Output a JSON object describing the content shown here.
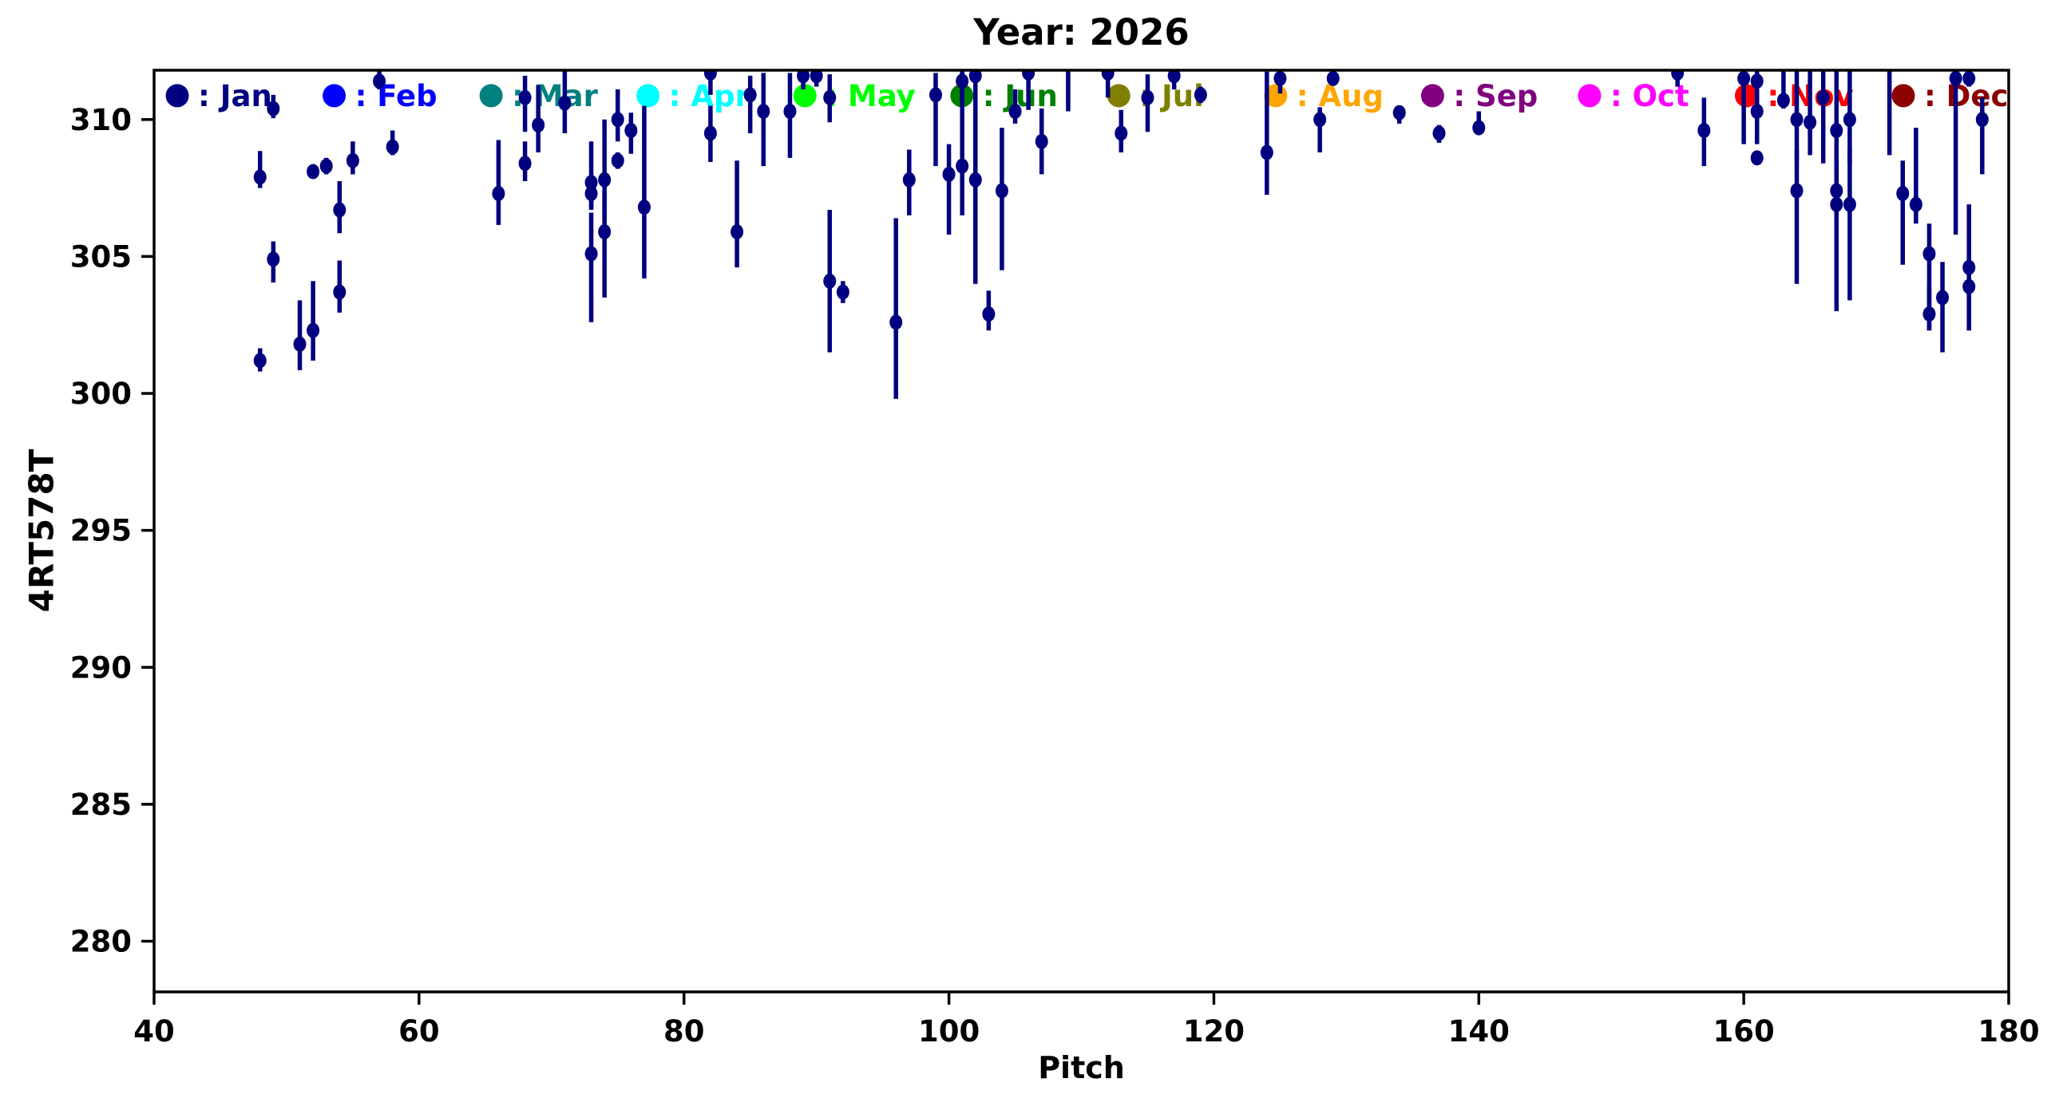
{
  "title": "Year: 2026",
  "axes": {
    "xlabel": "Pitch",
    "ylabel": "4RT578T",
    "xlim": [
      40,
      180
    ],
    "ylim": [
      278.15,
      311.8
    ],
    "x_ticks": [
      40,
      60,
      80,
      100,
      120,
      140,
      160,
      180
    ],
    "y_ticks": [
      280,
      285,
      290,
      295,
      300,
      305,
      310
    ],
    "grid": false,
    "frame_color": "#000000"
  },
  "legend": {
    "position": "inside-top-row",
    "start_pitch": 41.75,
    "step_pitch": 11.845,
    "value_y": 310.87,
    "label_prefix": ": ",
    "items": [
      {
        "label": "Jan",
        "color": "#000080"
      },
      {
        "label": "Feb",
        "color": "#0000FF"
      },
      {
        "label": "Mar",
        "color": "#008080"
      },
      {
        "label": "Apr",
        "color": "#00FFFF"
      },
      {
        "label": "May",
        "color": "#00FF00"
      },
      {
        "label": "Jun",
        "color": "#008000"
      },
      {
        "label": "Jul",
        "color": "#808000"
      },
      {
        "label": "Aug",
        "color": "#FFA500"
      },
      {
        "label": "Sep",
        "color": "#800080"
      },
      {
        "label": "Oct",
        "color": "#FF00FF"
      },
      {
        "label": "Nov",
        "color": "#FF0000"
      },
      {
        "label": "Dec",
        "color": "#8B0000"
      }
    ]
  },
  "chart_data": {
    "type": "scatter",
    "subtype": "errorbar",
    "title": "Year: 2026",
    "xlabel": "Pitch",
    "ylabel": "4RT578T",
    "series_name": "Jan",
    "series_color": "#000080",
    "marker": "circle",
    "error_caps": false,
    "points_format": "[pitch, value, err_minus, err_plus]",
    "points": [
      [
        48,
        307.9,
        0.4,
        0.95
      ],
      [
        48,
        301.2,
        0.4,
        0.45
      ],
      [
        49,
        310.4,
        0.35,
        0.5
      ],
      [
        49,
        304.9,
        0.85,
        0.65
      ],
      [
        51,
        301.8,
        0.95,
        1.6
      ],
      [
        52,
        308.1,
        0.2,
        0.2
      ],
      [
        52,
        302.3,
        1.1,
        1.8
      ],
      [
        53,
        308.3,
        0.3,
        0.3
      ],
      [
        54,
        306.7,
        0.85,
        1.05
      ],
      [
        54,
        303.7,
        0.75,
        1.15
      ],
      [
        55,
        308.5,
        0.5,
        0.7
      ],
      [
        57,
        311.4,
        0.3,
        0.5
      ],
      [
        58,
        309.0,
        0.3,
        0.6
      ],
      [
        66,
        307.3,
        1.15,
        1.95
      ],
      [
        68,
        310.8,
        1.25,
        0.8
      ],
      [
        68,
        308.4,
        0.65,
        0.8
      ],
      [
        69,
        309.8,
        1.0,
        1.45
      ],
      [
        71,
        310.6,
        1.1,
        1.3
      ],
      [
        73,
        307.7,
        0.9,
        1.5
      ],
      [
        73,
        307.3,
        0.6,
        0.6
      ],
      [
        73,
        305.1,
        2.5,
        1.5
      ],
      [
        74,
        307.8,
        1.5,
        2.2
      ],
      [
        74,
        305.9,
        2.4,
        1.5
      ],
      [
        75,
        310.0,
        0.8,
        1.1
      ],
      [
        75,
        308.5,
        0.3,
        0.3
      ],
      [
        76,
        309.6,
        0.85,
        0.65
      ],
      [
        77,
        306.8,
        2.6,
        3.7
      ],
      [
        82,
        311.7,
        0.8,
        0.6
      ],
      [
        82,
        309.5,
        1.05,
        1.0
      ],
      [
        84,
        305.9,
        1.3,
        2.6
      ],
      [
        85,
        310.9,
        1.4,
        0.7
      ],
      [
        86,
        310.3,
        2.0,
        1.4
      ],
      [
        88,
        310.3,
        1.7,
        1.4
      ],
      [
        89,
        311.6,
        0.5,
        0.5
      ],
      [
        90,
        311.6,
        0.4,
        0.4
      ],
      [
        91,
        310.8,
        0.9,
        0.85
      ],
      [
        91,
        304.1,
        2.6,
        2.6
      ],
      [
        92,
        303.7,
        0.4,
        0.4
      ],
      [
        96,
        302.6,
        2.8,
        3.8
      ],
      [
        97,
        307.8,
        1.3,
        1.1
      ],
      [
        99,
        310.9,
        2.6,
        0.8
      ],
      [
        100,
        308.0,
        2.2,
        1.1
      ],
      [
        101,
        311.4,
        0.4,
        0.4
      ],
      [
        101,
        308.3,
        1.8,
        3.4
      ],
      [
        102,
        311.6,
        0.5,
        0.5
      ],
      [
        102,
        307.8,
        3.8,
        3.8
      ],
      [
        103,
        302.9,
        0.6,
        0.85
      ],
      [
        104,
        307.4,
        2.9,
        2.3
      ],
      [
        105,
        310.3,
        0.45,
        0.8
      ],
      [
        106,
        311.7,
        1.35,
        0.6
      ],
      [
        107,
        309.2,
        1.2,
        1.2
      ],
      [
        109,
        312.3,
        2.0,
        0.5
      ],
      [
        112,
        311.7,
        0.9,
        0.5
      ],
      [
        113,
        309.5,
        0.7,
        0.85
      ],
      [
        115,
        310.8,
        1.25,
        0.85
      ],
      [
        117,
        311.6,
        0.5,
        0.5
      ],
      [
        119,
        310.9,
        0.3,
        0.3
      ],
      [
        124,
        308.8,
        1.55,
        2.95
      ],
      [
        125,
        311.5,
        0.55,
        0.3
      ],
      [
        128,
        310.0,
        1.2,
        0.45
      ],
      [
        129,
        311.5,
        0.2,
        0.2
      ],
      [
        134,
        310.25,
        0.4,
        0.2
      ],
      [
        137,
        309.5,
        0.35,
        0.3
      ],
      [
        140,
        309.7,
        0.25,
        0.6
      ],
      [
        155,
        311.7,
        0.5,
        0.5
      ],
      [
        157,
        309.6,
        1.3,
        1.2
      ],
      [
        160,
        311.5,
        2.4,
        0.6
      ],
      [
        161,
        311.4,
        0.9,
        0.5
      ],
      [
        161,
        310.3,
        1.2,
        1.1
      ],
      [
        161,
        308.6,
        0.25,
        0.25
      ],
      [
        163,
        310.7,
        0.3,
        1.2
      ],
      [
        164,
        310.0,
        1.5,
        1.8
      ],
      [
        164,
        307.4,
        3.4,
        1.5
      ],
      [
        165,
        309.9,
        1.2,
        1.9
      ],
      [
        166,
        310.8,
        2.4,
        1.0
      ],
      [
        167,
        309.6,
        2.2,
        2.2
      ],
      [
        167,
        307.4,
        1.0,
        1.0
      ],
      [
        167,
        306.9,
        3.9,
        2.0
      ],
      [
        168,
        310.0,
        1.6,
        1.8
      ],
      [
        168,
        306.9,
        3.5,
        2.0
      ],
      [
        171,
        312.3,
        3.6,
        0.5
      ],
      [
        172,
        307.3,
        2.6,
        1.2
      ],
      [
        173,
        306.9,
        0.7,
        2.8
      ],
      [
        174,
        305.1,
        2.8,
        1.1
      ],
      [
        174,
        302.9,
        0.6,
        1.0
      ],
      [
        175,
        303.5,
        2.0,
        1.3
      ],
      [
        176,
        311.5,
        5.7,
        0.5
      ],
      [
        177,
        311.5,
        0.3,
        0.4
      ],
      [
        177,
        304.6,
        2.3,
        2.3
      ],
      [
        177,
        303.9,
        1.6,
        1.0
      ],
      [
        178,
        310.0,
        2.0,
        0.8
      ]
    ]
  }
}
